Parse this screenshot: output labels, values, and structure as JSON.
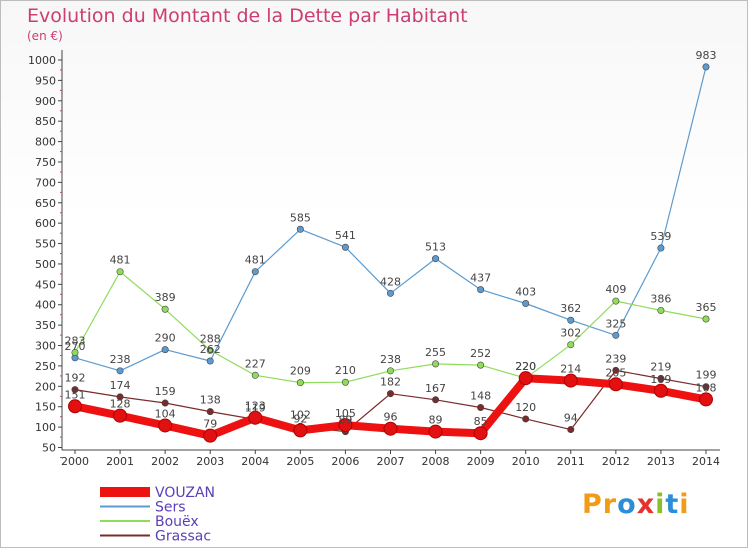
{
  "title": "Evolution du Montant de la Dette par Habitant",
  "subtitle": "(en €)",
  "logo": {
    "text": "Proxiti",
    "letters": [
      "P",
      "r",
      "o",
      "x",
      "i",
      "t",
      "i"
    ],
    "colors": [
      "#f29b16",
      "#f29b16",
      "#2d8ed6",
      "#e5322d",
      "#8cbf26",
      "#2d8ed6",
      "#f29b16"
    ]
  },
  "chart_data": {
    "type": "line",
    "x": [
      "2000",
      "2001",
      "2002",
      "2003",
      "2004",
      "2005",
      "2006",
      "2007",
      "2008",
      "2009",
      "2010",
      "2011",
      "2012",
      "2013",
      "2014"
    ],
    "yticks": [
      50,
      100,
      150,
      200,
      250,
      300,
      350,
      400,
      450,
      500,
      550,
      600,
      650,
      700,
      750,
      800,
      850,
      900,
      950,
      1000
    ],
    "ylim": [
      50,
      1000
    ],
    "grid": false,
    "legend_position": "bottom-left",
    "series": [
      {
        "name": "Sers",
        "color": "#5b9bd0",
        "width": 1.2,
        "values": [
          270,
          238,
          290,
          262,
          481,
          585,
          541,
          428,
          513,
          437,
          403,
          362,
          325,
          539,
          983
        ],
        "labels": [
          "270",
          "238",
          "290",
          "262",
          "481",
          "585",
          "541",
          "428",
          "513",
          "437",
          "403",
          "362",
          "325",
          "539",
          "983"
        ]
      },
      {
        "name": "Bouëx",
        "color": "#8fdc5b",
        "width": 1.2,
        "values": [
          283,
          481,
          389,
          288,
          227,
          209,
          210,
          238,
          255,
          252,
          220,
          302,
          409,
          386,
          365
        ],
        "labels": [
          "283",
          "481",
          "389",
          "288",
          "227",
          "209",
          "210",
          "238",
          "255",
          "252",
          "220",
          "302",
          "409",
          "386",
          "365"
        ]
      },
      {
        "name": "Grassac",
        "color": "#7a2b2b",
        "width": 1.2,
        "values": [
          192,
          174,
          159,
          138,
          119,
          102,
          89,
          182,
          167,
          148,
          120,
          94,
          239,
          219,
          199
        ],
        "labels": [
          "192",
          "174",
          "159",
          "138",
          "119",
          "102",
          "89",
          "182",
          "167",
          "148",
          "120",
          "94",
          "239",
          "219",
          "199"
        ]
      },
      {
        "name": "VOUZAN",
        "color": "#ee1111",
        "width": 8,
        "values": [
          151,
          128,
          104,
          79,
          123,
          92,
          105,
          96,
          89,
          85,
          220,
          214,
          205,
          189,
          168
        ],
        "labels": [
          "151",
          "128",
          "104",
          "79",
          "123",
          "92",
          "105",
          "96",
          "89",
          "85",
          "220",
          "214",
          "205",
          "189",
          "168"
        ]
      }
    ],
    "legend_order": [
      "VOUZAN",
      "Sers",
      "Bouëx",
      "Grassac"
    ]
  }
}
